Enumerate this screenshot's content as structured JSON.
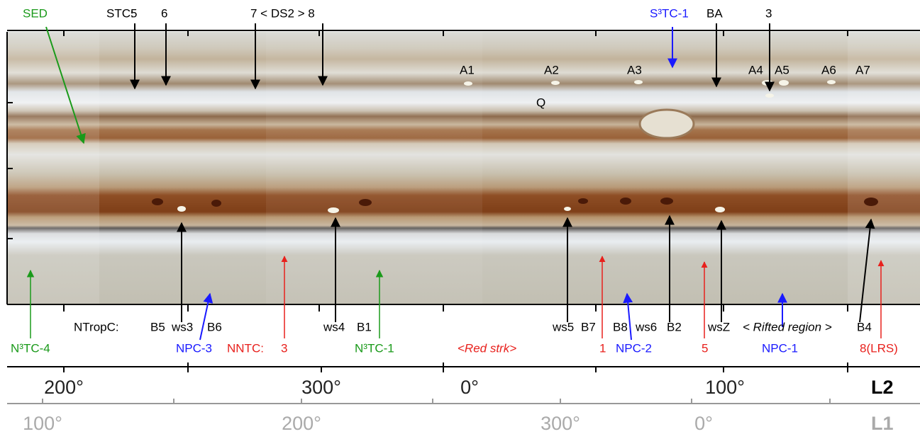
{
  "top_labels": [
    "SED",
    "STC:",
    "5",
    "6",
    "7 < DS2 > 8",
    "S³TC-1",
    "BA",
    "3"
  ],
  "image_labels": [
    "A1",
    "A2",
    "A3",
    "A4",
    "A5",
    "A6",
    "A7",
    "Q"
  ],
  "bottom_labels_row1": [
    "NTropC:",
    "B5",
    "ws3",
    "B6",
    "ws4",
    "B1",
    "ws5",
    "B7",
    "B8",
    "ws6",
    "B2",
    "wsZ",
    "< Rifted region >",
    "B4"
  ],
  "bottom_labels_row2": [
    "N³TC-4",
    "NPC-3",
    "NNTC:",
    "3",
    "N³TC-1",
    "<Red strk>",
    "1",
    "NPC-2",
    "5",
    "NPC-1",
    "8(LRS)"
  ],
  "l2_axis": {
    "name": "L2",
    "labels": [
      "200°",
      "300°",
      "0°",
      "100°"
    ]
  },
  "l1_axis": {
    "name": "L1",
    "labels": [
      "100°",
      "200°",
      "300°",
      "0°"
    ]
  }
}
